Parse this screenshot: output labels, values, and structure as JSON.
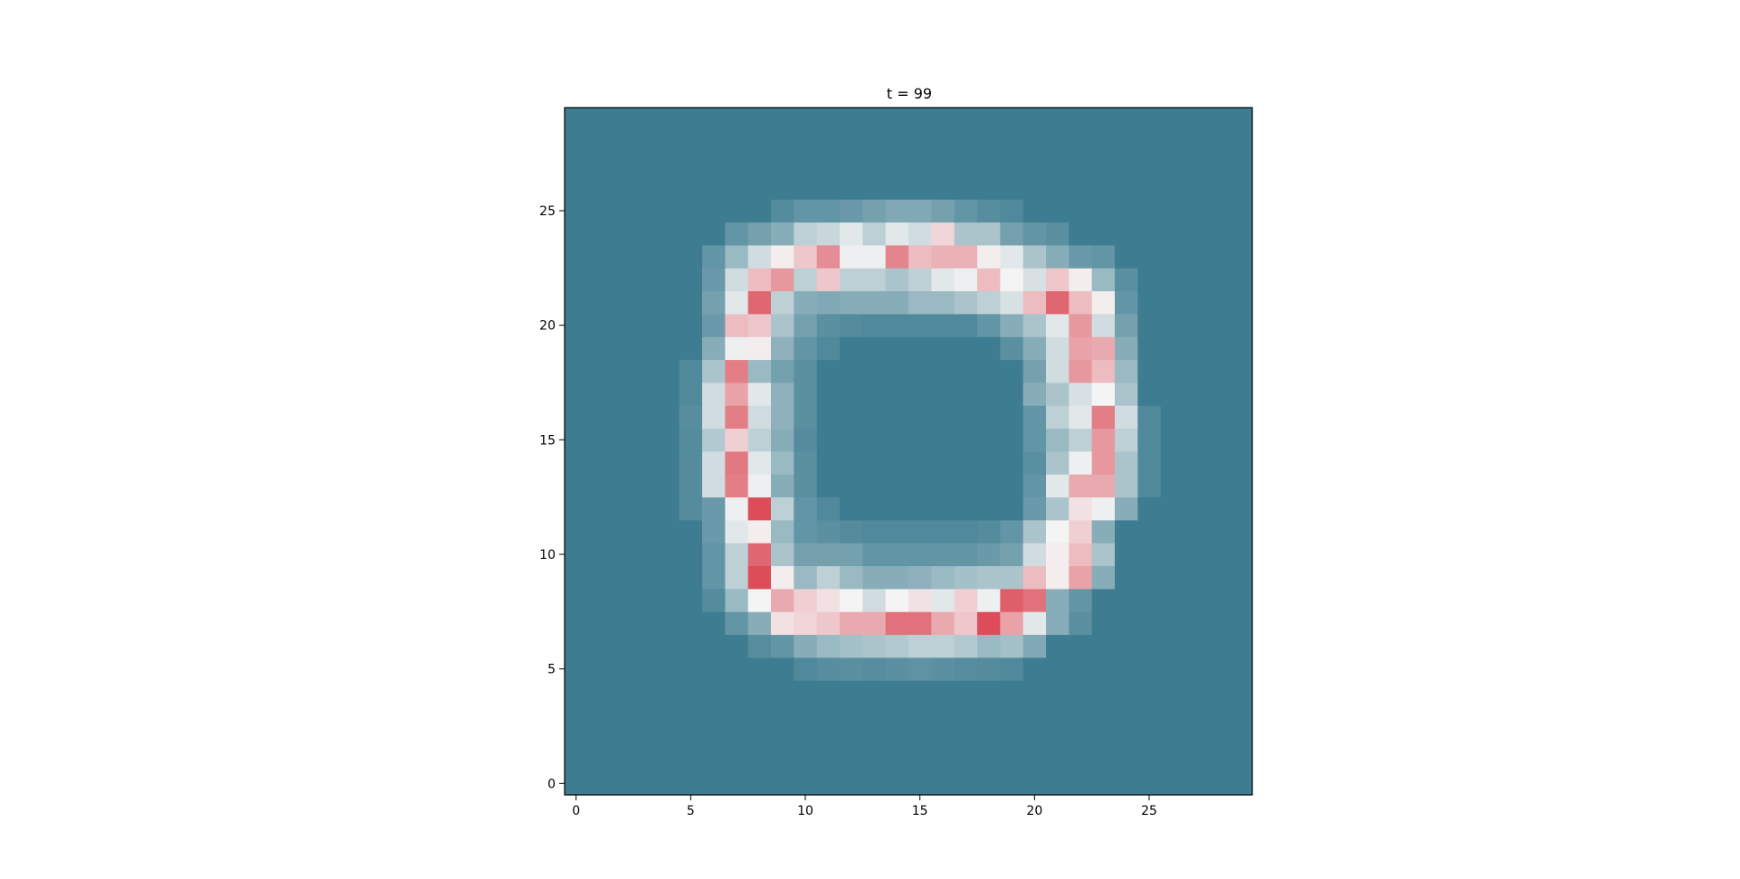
{
  "chart_data": {
    "type": "heatmap",
    "title": "t = 99",
    "xlabel": "",
    "ylabel": "",
    "xlim": [
      -0.5,
      29.5
    ],
    "ylim": [
      -0.5,
      29.5
    ],
    "x_ticks": [
      0,
      5,
      10,
      15,
      20,
      25
    ],
    "y_ticks": [
      0,
      5,
      10,
      15,
      20,
      25
    ],
    "x_tick_labels": [
      "0",
      "5",
      "10",
      "15",
      "20",
      "25"
    ],
    "y_tick_labels": [
      "0",
      "5",
      "10",
      "15",
      "20",
      "25"
    ],
    "grid": false,
    "origin": "lower",
    "grid_size": 30,
    "colormap": {
      "low": "#3e7d91",
      "mid": "#f4f4f4",
      "high": "#d93a48"
    },
    "value_range": [
      0,
      1
    ],
    "background_value": 0.0,
    "nonzero_cells": [
      [
        5,
        10,
        0.05
      ],
      [
        5,
        11,
        0.07
      ],
      [
        5,
        12,
        0.08
      ],
      [
        5,
        13,
        0.07
      ],
      [
        5,
        14,
        0.08
      ],
      [
        5,
        15,
        0.09
      ],
      [
        5,
        16,
        0.08
      ],
      [
        5,
        17,
        0.07
      ],
      [
        5,
        18,
        0.06
      ],
      [
        5,
        19,
        0.05
      ],
      [
        6,
        8,
        0.07
      ],
      [
        6,
        9,
        0.1
      ],
      [
        6,
        10,
        0.2
      ],
      [
        6,
        11,
        0.25
      ],
      [
        6,
        12,
        0.28
      ],
      [
        6,
        13,
        0.3
      ],
      [
        6,
        14,
        0.32
      ],
      [
        6,
        15,
        0.35
      ],
      [
        6,
        16,
        0.35
      ],
      [
        6,
        17,
        0.32
      ],
      [
        6,
        18,
        0.25
      ],
      [
        6,
        19,
        0.28
      ],
      [
        6,
        20,
        0.18
      ],
      [
        7,
        7,
        0.1
      ],
      [
        7,
        8,
        0.2
      ],
      [
        7,
        9,
        0.55
      ],
      [
        7,
        10,
        0.58
      ],
      [
        7,
        11,
        0.62
      ],
      [
        7,
        12,
        0.7
      ],
      [
        7,
        13,
        0.7
      ],
      [
        7,
        14,
        0.85
      ],
      [
        7,
        15,
        0.85
      ],
      [
        7,
        16,
        0.7
      ],
      [
        7,
        17,
        0.62
      ],
      [
        7,
        18,
        0.95
      ],
      [
        7,
        19,
        0.72
      ],
      [
        7,
        20,
        0.45
      ],
      [
        7,
        21,
        0.2
      ],
      [
        7,
        22,
        0.08
      ],
      [
        8,
        6,
        0.06
      ],
      [
        8,
        7,
        0.25
      ],
      [
        8,
        8,
        0.5
      ],
      [
        8,
        9,
        0.7
      ],
      [
        8,
        10,
        0.6
      ],
      [
        8,
        11,
        0.55
      ],
      [
        8,
        12,
        0.5
      ],
      [
        8,
        13,
        0.4
      ],
      [
        8,
        14,
        0.5
      ],
      [
        8,
        15,
        0.55
      ],
      [
        8,
        16,
        0.45
      ],
      [
        8,
        17,
        0.6
      ],
      [
        8,
        18,
        0.48
      ],
      [
        8,
        19,
        0.9
      ],
      [
        8,
        20,
        0.85
      ],
      [
        8,
        21,
        0.2
      ],
      [
        8,
        22,
        0.1
      ],
      [
        9,
        6,
        0.1
      ],
      [
        9,
        7,
        0.35
      ],
      [
        9,
        8,
        0.95
      ],
      [
        9,
        9,
        0.52
      ],
      [
        9,
        10,
        0.25
      ],
      [
        9,
        11,
        0.35
      ],
      [
        9,
        12,
        0.25
      ],
      [
        9,
        13,
        0.2
      ],
      [
        9,
        14,
        0.2
      ],
      [
        9,
        15,
        0.22
      ],
      [
        9,
        16,
        0.25
      ],
      [
        9,
        17,
        0.28
      ],
      [
        9,
        18,
        0.3
      ],
      [
        9,
        19,
        0.3
      ],
      [
        9,
        20,
        0.65
      ],
      [
        9,
        21,
        0.52
      ],
      [
        9,
        22,
        0.72
      ],
      [
        9,
        23,
        0.2
      ],
      [
        10,
        6,
        0.1
      ],
      [
        10,
        7,
        0.35
      ],
      [
        10,
        8,
        0.88
      ],
      [
        10,
        9,
        0.3
      ],
      [
        10,
        10,
        0.15
      ],
      [
        10,
        11,
        0.15
      ],
      [
        10,
        12,
        0.15
      ],
      [
        10,
        13,
        0.1
      ],
      [
        10,
        14,
        0.1
      ],
      [
        10,
        15,
        0.1
      ],
      [
        10,
        16,
        0.1
      ],
      [
        10,
        17,
        0.1
      ],
      [
        10,
        18,
        0.12
      ],
      [
        10,
        19,
        0.15
      ],
      [
        10,
        20,
        0.4
      ],
      [
        10,
        21,
        0.52
      ],
      [
        10,
        22,
        0.65
      ],
      [
        10,
        23,
        0.3
      ],
      [
        11,
        6,
        0.12
      ],
      [
        11,
        7,
        0.45
      ],
      [
        11,
        8,
        0.52
      ],
      [
        11,
        9,
        0.25
      ],
      [
        11,
        10,
        0.1
      ],
      [
        11,
        11,
        0.08
      ],
      [
        11,
        12,
        0.06
      ],
      [
        11,
        13,
        0.05
      ],
      [
        11,
        14,
        0.05
      ],
      [
        11,
        15,
        0.05
      ],
      [
        11,
        16,
        0.05
      ],
      [
        11,
        17,
        0.05
      ],
      [
        11,
        18,
        0.06
      ],
      [
        11,
        19,
        0.1
      ],
      [
        11,
        20,
        0.3
      ],
      [
        11,
        21,
        0.5
      ],
      [
        11,
        22,
        0.6
      ],
      [
        11,
        23,
        0.2
      ],
      [
        12,
        5,
        0.06
      ],
      [
        12,
        6,
        0.12
      ],
      [
        12,
        7,
        0.48
      ],
      [
        12,
        8,
        0.95
      ],
      [
        12,
        9,
        0.35
      ],
      [
        12,
        10,
        0.1
      ],
      [
        12,
        11,
        0.05
      ],
      [
        12,
        20,
        0.12
      ],
      [
        12,
        21,
        0.3
      ],
      [
        12,
        22,
        0.55
      ],
      [
        12,
        23,
        0.48
      ],
      [
        12,
        24,
        0.2
      ],
      [
        13,
        5,
        0.06
      ],
      [
        13,
        6,
        0.4
      ],
      [
        13,
        7,
        0.82
      ],
      [
        13,
        8,
        0.48
      ],
      [
        13,
        9,
        0.2
      ],
      [
        13,
        10,
        0.08
      ],
      [
        13,
        20,
        0.1
      ],
      [
        13,
        21,
        0.45
      ],
      [
        13,
        22,
        0.7
      ],
      [
        13,
        23,
        0.7
      ],
      [
        13,
        24,
        0.3
      ],
      [
        13,
        25,
        0.05
      ],
      [
        14,
        5,
        0.06
      ],
      [
        14,
        6,
        0.4
      ],
      [
        14,
        7,
        0.83
      ],
      [
        14,
        8,
        0.45
      ],
      [
        14,
        9,
        0.25
      ],
      [
        14,
        10,
        0.08
      ],
      [
        14,
        20,
        0.08
      ],
      [
        14,
        21,
        0.3
      ],
      [
        14,
        22,
        0.48
      ],
      [
        14,
        23,
        0.75
      ],
      [
        14,
        24,
        0.3
      ],
      [
        14,
        25,
        0.05
      ],
      [
        15,
        5,
        0.06
      ],
      [
        15,
        6,
        0.32
      ],
      [
        15,
        7,
        0.6
      ],
      [
        15,
        8,
        0.35
      ],
      [
        15,
        9,
        0.2
      ],
      [
        15,
        10,
        0.06
      ],
      [
        15,
        20,
        0.1
      ],
      [
        15,
        21,
        0.25
      ],
      [
        15,
        22,
        0.35
      ],
      [
        15,
        23,
        0.75
      ],
      [
        15,
        24,
        0.35
      ],
      [
        15,
        25,
        0.05
      ],
      [
        16,
        5,
        0.07
      ],
      [
        16,
        6,
        0.4
      ],
      [
        16,
        7,
        0.82
      ],
      [
        16,
        8,
        0.4
      ],
      [
        16,
        9,
        0.22
      ],
      [
        16,
        10,
        0.08
      ],
      [
        16,
        20,
        0.1
      ],
      [
        16,
        21,
        0.35
      ],
      [
        16,
        22,
        0.45
      ],
      [
        16,
        23,
        0.82
      ],
      [
        16,
        24,
        0.4
      ],
      [
        16,
        25,
        0.05
      ],
      [
        17,
        5,
        0.05
      ],
      [
        17,
        6,
        0.4
      ],
      [
        17,
        7,
        0.72
      ],
      [
        17,
        8,
        0.45
      ],
      [
        17,
        9,
        0.22
      ],
      [
        17,
        10,
        0.08
      ],
      [
        17,
        20,
        0.2
      ],
      [
        17,
        21,
        0.3
      ],
      [
        17,
        22,
        0.42
      ],
      [
        17,
        23,
        0.5
      ],
      [
        17,
        24,
        0.3
      ],
      [
        18,
        5,
        0.05
      ],
      [
        18,
        6,
        0.3
      ],
      [
        18,
        7,
        0.82
      ],
      [
        18,
        8,
        0.25
      ],
      [
        18,
        9,
        0.15
      ],
      [
        18,
        10,
        0.08
      ],
      [
        18,
        20,
        0.15
      ],
      [
        18,
        21,
        0.4
      ],
      [
        18,
        22,
        0.75
      ],
      [
        18,
        23,
        0.65
      ],
      [
        18,
        24,
        0.25
      ],
      [
        19,
        6,
        0.2
      ],
      [
        19,
        7,
        0.48
      ],
      [
        19,
        8,
        0.52
      ],
      [
        19,
        9,
        0.22
      ],
      [
        19,
        10,
        0.1
      ],
      [
        19,
        11,
        0.05
      ],
      [
        19,
        19,
        0.08
      ],
      [
        19,
        20,
        0.2
      ],
      [
        19,
        21,
        0.4
      ],
      [
        19,
        22,
        0.72
      ],
      [
        19,
        23,
        0.7
      ],
      [
        19,
        24,
        0.2
      ],
      [
        20,
        6,
        0.12
      ],
      [
        20,
        7,
        0.65
      ],
      [
        20,
        8,
        0.62
      ],
      [
        20,
        9,
        0.3
      ],
      [
        20,
        10,
        0.15
      ],
      [
        20,
        11,
        0.08
      ],
      [
        20,
        12,
        0.06
      ],
      [
        20,
        13,
        0.05
      ],
      [
        20,
        14,
        0.05
      ],
      [
        20,
        15,
        0.05
      ],
      [
        20,
        16,
        0.05
      ],
      [
        20,
        17,
        0.05
      ],
      [
        20,
        18,
        0.1
      ],
      [
        20,
        19,
        0.2
      ],
      [
        20,
        20,
        0.3
      ],
      [
        20,
        21,
        0.45
      ],
      [
        20,
        22,
        0.75
      ],
      [
        20,
        23,
        0.4
      ],
      [
        20,
        24,
        0.15
      ],
      [
        21,
        6,
        0.15
      ],
      [
        21,
        7,
        0.45
      ],
      [
        21,
        8,
        0.88
      ],
      [
        21,
        9,
        0.35
      ],
      [
        21,
        10,
        0.2
      ],
      [
        21,
        11,
        0.18
      ],
      [
        21,
        12,
        0.2
      ],
      [
        21,
        13,
        0.2
      ],
      [
        21,
        14,
        0.2
      ],
      [
        21,
        15,
        0.25
      ],
      [
        21,
        16,
        0.25
      ],
      [
        21,
        17,
        0.3
      ],
      [
        21,
        18,
        0.35
      ],
      [
        21,
        19,
        0.42
      ],
      [
        21,
        20,
        0.65
      ],
      [
        21,
        21,
        0.88
      ],
      [
        21,
        22,
        0.65
      ],
      [
        21,
        23,
        0.52
      ],
      [
        21,
        24,
        0.1
      ],
      [
        22,
        6,
        0.12
      ],
      [
        22,
        7,
        0.4
      ],
      [
        22,
        8,
        0.65
      ],
      [
        22,
        9,
        0.75
      ],
      [
        22,
        10,
        0.35
      ],
      [
        22,
        11,
        0.62
      ],
      [
        22,
        12,
        0.35
      ],
      [
        22,
        13,
        0.35
      ],
      [
        22,
        14,
        0.3
      ],
      [
        22,
        15,
        0.35
      ],
      [
        22,
        16,
        0.45
      ],
      [
        22,
        17,
        0.48
      ],
      [
        22,
        18,
        0.65
      ],
      [
        22,
        19,
        0.5
      ],
      [
        22,
        20,
        0.42
      ],
      [
        22,
        21,
        0.62
      ],
      [
        22,
        22,
        0.52
      ],
      [
        22,
        23,
        0.25
      ],
      [
        22,
        24,
        0.08
      ],
      [
        23,
        6,
        0.1
      ],
      [
        23,
        7,
        0.25
      ],
      [
        23,
        8,
        0.4
      ],
      [
        23,
        9,
        0.52
      ],
      [
        23,
        10,
        0.62
      ],
      [
        23,
        11,
        0.78
      ],
      [
        23,
        12,
        0.48
      ],
      [
        23,
        13,
        0.48
      ],
      [
        23,
        14,
        0.8
      ],
      [
        23,
        15,
        0.65
      ],
      [
        23,
        16,
        0.68
      ],
      [
        23,
        17,
        0.68
      ],
      [
        23,
        18,
        0.52
      ],
      [
        23,
        19,
        0.45
      ],
      [
        23,
        20,
        0.3
      ],
      [
        23,
        21,
        0.2
      ],
      [
        23,
        22,
        0.12
      ],
      [
        23,
        23,
        0.1
      ],
      [
        24,
        7,
        0.1
      ],
      [
        24,
        8,
        0.15
      ],
      [
        24,
        9,
        0.2
      ],
      [
        24,
        10,
        0.35
      ],
      [
        24,
        11,
        0.38
      ],
      [
        24,
        12,
        0.45
      ],
      [
        24,
        13,
        0.35
      ],
      [
        24,
        14,
        0.45
      ],
      [
        24,
        15,
        0.4
      ],
      [
        24,
        16,
        0.58
      ],
      [
        24,
        17,
        0.3
      ],
      [
        24,
        18,
        0.3
      ],
      [
        24,
        19,
        0.15
      ],
      [
        24,
        20,
        0.1
      ],
      [
        24,
        21,
        0.08
      ],
      [
        25,
        9,
        0.06
      ],
      [
        25,
        10,
        0.1
      ],
      [
        25,
        11,
        0.1
      ],
      [
        25,
        12,
        0.12
      ],
      [
        25,
        13,
        0.15
      ],
      [
        25,
        14,
        0.18
      ],
      [
        25,
        15,
        0.18
      ],
      [
        25,
        16,
        0.15
      ],
      [
        25,
        17,
        0.1
      ],
      [
        25,
        18,
        0.07
      ],
      [
        25,
        19,
        0.05
      ]
    ]
  }
}
